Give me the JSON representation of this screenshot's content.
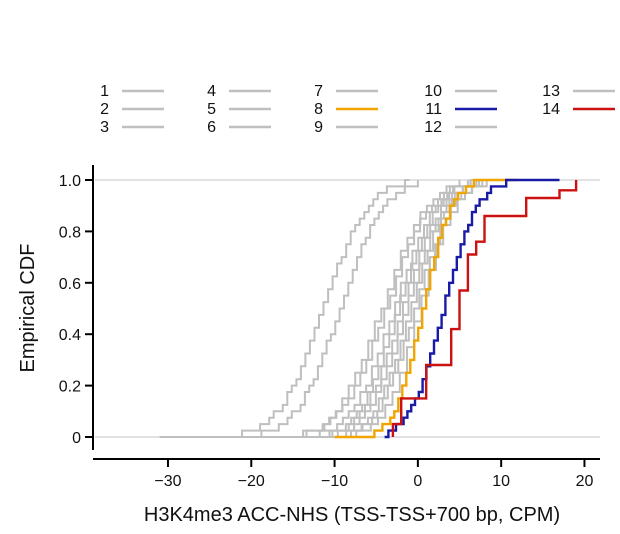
{
  "chart_data": {
    "type": "line",
    "subtype": "step (empirical CDF)",
    "xlabel": "H3K4me3 ACC-NHS (TSS-TSS+700 bp, CPM)",
    "ylabel": "Empirical CDF",
    "xlim": [
      -39,
      22
    ],
    "ylim": [
      0,
      1.05
    ],
    "x_ticks": [
      -30,
      -20,
      -10,
      0,
      10,
      20
    ],
    "x_tick_labels": [
      "−30",
      "−20",
      "−10",
      "0",
      "10",
      "20"
    ],
    "y_ticks": [
      0,
      0.2,
      0.4,
      0.6,
      0.8,
      1.0
    ],
    "y_tick_labels": [
      "0",
      "0.2",
      "0.4",
      "0.6",
      "0.8",
      "1.0"
    ],
    "grid": "horizontal reference lines at 0 and 1",
    "legend_position": "top",
    "colors": {
      "default": "#bfbfbf",
      "highlight_8": "#f0a500",
      "highlight_11": "#1a1aa8",
      "highlight_14": "#cc1111",
      "axis": "#000000",
      "refline": "#d9d9d9"
    },
    "series": [
      {
        "name": "1",
        "color": "#bfbfbf",
        "center": -11.5,
        "spread": 4.3,
        "xmin": -26,
        "xmax": -1
      },
      {
        "name": "2",
        "color": "#bfbfbf",
        "center": -9.5,
        "spread": 4.2,
        "xmin": -24,
        "xmax": 0
      },
      {
        "name": "3",
        "color": "#bfbfbf",
        "center": -4.5,
        "spread": 4.3,
        "xmin": -31,
        "xmax": 5
      },
      {
        "name": "4",
        "color": "#bfbfbf",
        "center": -4.0,
        "spread": 4.3,
        "xmin": -27,
        "xmax": 6
      },
      {
        "name": "5",
        "color": "#bfbfbf",
        "center": -3.0,
        "spread": 4.0,
        "xmin": -25,
        "xmax": 7
      },
      {
        "name": "6",
        "color": "#bfbfbf",
        "center": -2.5,
        "spread": 3.8,
        "xmin": -23,
        "xmax": 7
      },
      {
        "name": "7",
        "color": "#bfbfbf",
        "center": -2.0,
        "spread": 3.8,
        "xmin": -22,
        "xmax": 8
      },
      {
        "name": "8",
        "color": "#f0a500",
        "center": 0.5,
        "spread": 2.7,
        "xmin": -10,
        "xmax": 12
      },
      {
        "name": "9",
        "color": "#bfbfbf",
        "center": -1.5,
        "spread": 3.7,
        "xmin": -22,
        "xmax": 8
      },
      {
        "name": "10",
        "color": "#bfbfbf",
        "center": -1.0,
        "spread": 3.5,
        "xmin": -21,
        "xmax": 9
      },
      {
        "name": "11",
        "color": "#1a1aa8",
        "center": 3.0,
        "spread": 3.2,
        "xmin": -4,
        "xmax": 17
      },
      {
        "name": "12",
        "color": "#bfbfbf",
        "center": -0.5,
        "spread": 3.6,
        "xmin": -20,
        "xmax": 9
      },
      {
        "name": "13",
        "color": "#bfbfbf",
        "center": 0.0,
        "spread": 3.4,
        "xmin": -30,
        "xmax": 10
      },
      {
        "name": "14",
        "color": "#cc1111",
        "points": [
          [
            -3,
            0.0
          ],
          [
            -3,
            0.05
          ],
          [
            -2,
            0.05
          ],
          [
            -2,
            0.15
          ],
          [
            1,
            0.15
          ],
          [
            1,
            0.28
          ],
          [
            4,
            0.28
          ],
          [
            4,
            0.42
          ],
          [
            5,
            0.42
          ],
          [
            5,
            0.57
          ],
          [
            6,
            0.57
          ],
          [
            6,
            0.71
          ],
          [
            7,
            0.71
          ],
          [
            7,
            0.76
          ],
          [
            8,
            0.76
          ],
          [
            8,
            0.86
          ],
          [
            13,
            0.86
          ],
          [
            13,
            0.93
          ],
          [
            17,
            0.93
          ],
          [
            17,
            0.96
          ],
          [
            19,
            0.96
          ],
          [
            19,
            1.0
          ]
        ]
      }
    ]
  }
}
